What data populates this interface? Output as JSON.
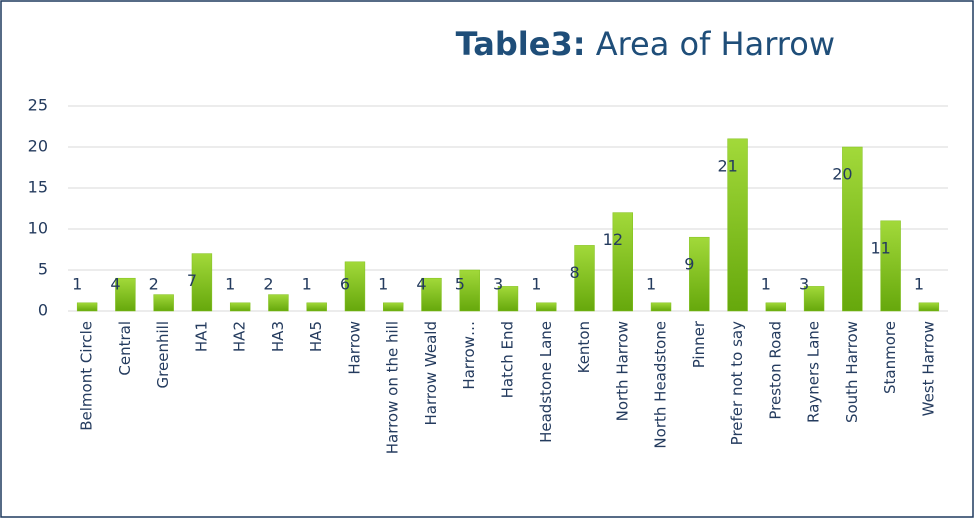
{
  "chart_data": {
    "type": "bar",
    "title_prefix": "Table3:",
    "title": "Area of Harrow",
    "categories": [
      "Belmont Circle",
      "Central",
      "Greenhill",
      "HA1",
      "HA2",
      "HA3",
      "HA5",
      "Harrow",
      "Harrow on the hill",
      "Harrow Weald",
      "Harrow…",
      "Hatch End",
      "Headstone Lane",
      "Kenton",
      "North Harrow",
      "North Headstone",
      "Pinner",
      "Prefer not to say",
      "Preston Road",
      "Rayners Lane",
      "South Harrow",
      "Stanmore",
      "West Harrow"
    ],
    "values": [
      1,
      4,
      2,
      7,
      1,
      2,
      1,
      6,
      1,
      4,
      5,
      3,
      1,
      8,
      12,
      1,
      9,
      21,
      1,
      3,
      20,
      11,
      1
    ],
    "color": "#7fbf1a",
    "ylim": [
      0,
      25
    ],
    "yticks": [
      0,
      5,
      10,
      15,
      20,
      25
    ],
    "grid": true
  }
}
